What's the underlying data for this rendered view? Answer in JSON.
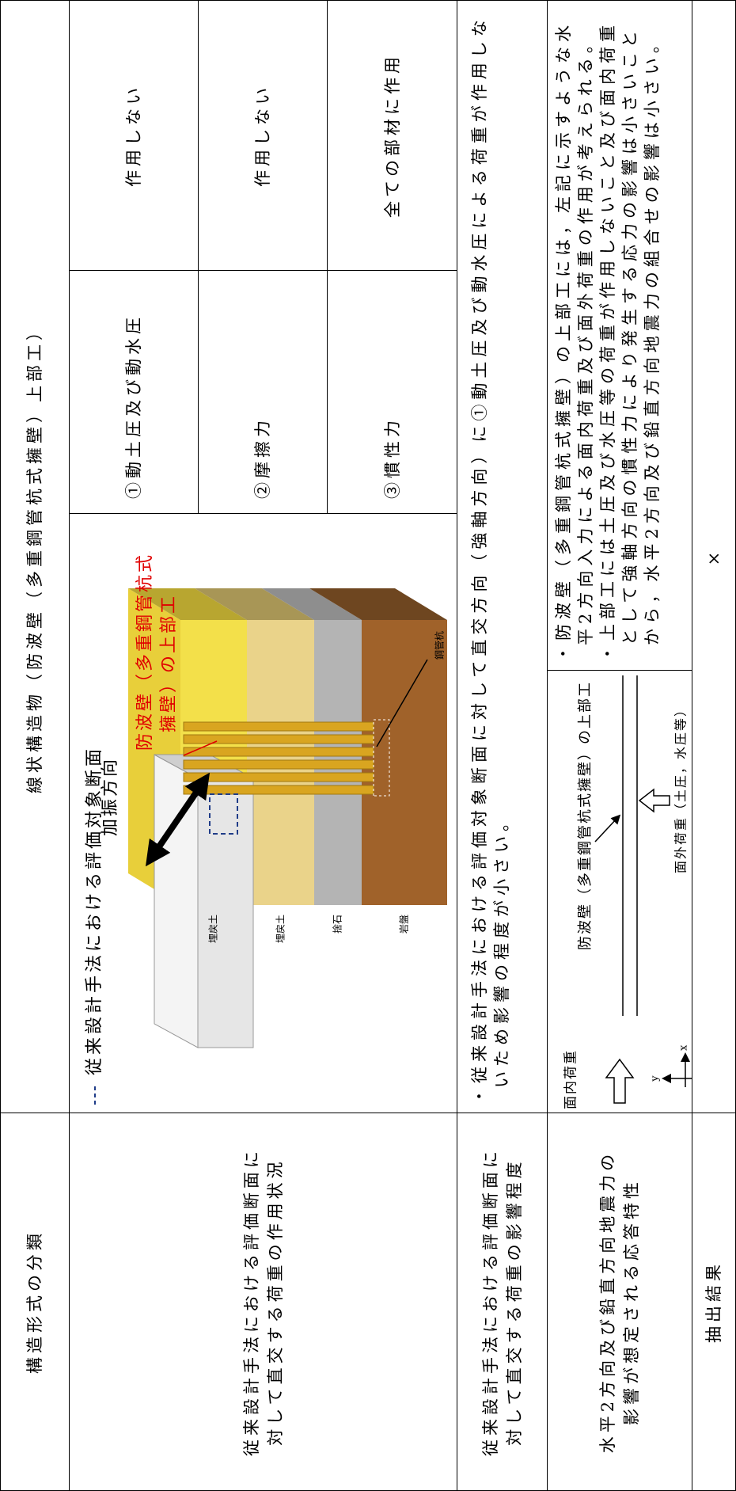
{
  "header": {
    "label": "構造形式の分類",
    "value": "線状構造物（防波壁（多重鋼管杭式擁壁）上部工）"
  },
  "action": {
    "label": [
      "従来設計手法における評価断面に",
      "対して直交する荷重の作用状況"
    ],
    "figure": {
      "legend": "従来設計手法における評価対象断面",
      "direction": "加振方向",
      "target": [
        "防波壁（多重鋼管杭式",
        "擁壁）の上部工"
      ],
      "pile": "鋼管杭",
      "layers": [
        "埋戻土",
        "埋戻土",
        "捨石",
        "岩盤"
      ]
    },
    "loads": [
      {
        "name": "①動土圧及び動水圧",
        "effect": "作用しない"
      },
      {
        "name": "②摩擦力",
        "effect": "作用しない"
      },
      {
        "name": "③慣性力",
        "effect": "全ての部材に作用"
      }
    ]
  },
  "influence": {
    "label": [
      "従来設計手法における評価断面に",
      "対して直交する荷重の影響程度"
    ],
    "text": "・従来設計手法における評価対象断面に対して直交方向（強軸方向）に①動土圧及び動水圧による荷重が作用しないため影響の程度が小さい。"
  },
  "response": {
    "label": [
      "水平2方向及び鉛直方向地震力の",
      "影響が想定される応答特性"
    ],
    "diagram": {
      "in_plane": "面内荷重",
      "target": "防波壁（多重鋼管杭式擁壁）の上部工",
      "out_of_plane": "面外荷重（土圧，水圧等）",
      "x": "x",
      "y": "y"
    },
    "notes": [
      "・防波壁（多重鋼管杭式擁壁）の上部工には，左記に示すような水平2方向入力による面内荷重及び面外荷重の作用が考えられる。",
      "・上部工には土圧及び水圧等の荷重が作用しないこと及び面内荷重として強軸方向の慣性力により発生する応力の影響は小さいことから，水平2方向及び鉛直方向地震力の組合せの影響は小さい。"
    ]
  },
  "result": {
    "label": "抽出結果",
    "value": "×"
  }
}
